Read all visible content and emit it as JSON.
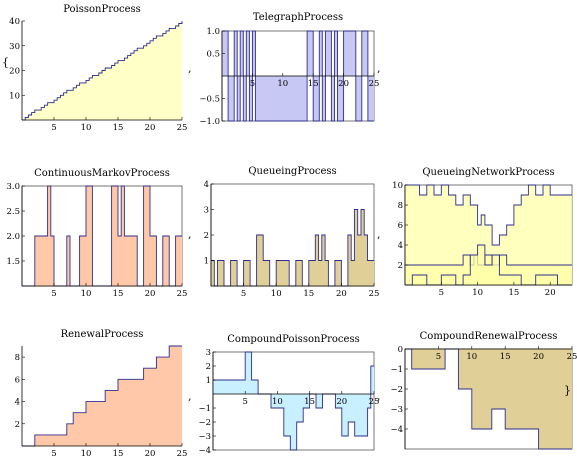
{
  "punctuation": {
    "brace_open": "{",
    "brace_close": "}",
    "comma": ","
  },
  "chart_data": [
    {
      "title": "PoissonProcess",
      "type": "area",
      "style": "step",
      "color": "#FFFFC8",
      "edge": "#2E2E8C",
      "xlim": [
        0,
        25
      ],
      "ylim": [
        0,
        40
      ],
      "axis_at": 0,
      "frame": false,
      "xticks": [
        5,
        10,
        15,
        20,
        25
      ],
      "yticks": [
        10,
        20,
        30,
        40
      ],
      "x": [
        0,
        0.5,
        1,
        1.5,
        2,
        3,
        3.5,
        4,
        5,
        5.5,
        6,
        6.5,
        7,
        8,
        8.5,
        9,
        10,
        10.5,
        11,
        12,
        12.5,
        13,
        14,
        14.5,
        15,
        16,
        16.5,
        17,
        17.5,
        18,
        19,
        19.5,
        20,
        20.5,
        21,
        22,
        22.5,
        23,
        24,
        24.5,
        25
      ],
      "y": [
        0,
        1,
        2,
        3,
        4,
        5,
        6,
        7,
        8,
        9,
        10,
        11,
        12,
        13,
        14,
        15,
        16,
        17,
        18,
        19,
        20,
        21,
        22,
        23,
        24,
        25,
        26,
        27,
        28,
        29,
        30,
        31,
        32,
        33,
        34,
        35,
        36,
        37,
        38,
        39,
        40
      ]
    },
    {
      "title": "TelegraphProcess",
      "type": "area",
      "style": "step",
      "color": "#C8C8F5",
      "edge": "#2E2E8C",
      "xlim": [
        0,
        25
      ],
      "ylim": [
        -1,
        1
      ],
      "axis_at": 0,
      "frame": true,
      "xticks": [
        5,
        10,
        15,
        20,
        25
      ],
      "yticks": [
        -1.0,
        -0.5,
        0.5,
        1.0
      ],
      "ytick_labels": [
        "−1.0",
        "−0.5",
        "0.5",
        "1.0"
      ],
      "x": [
        0,
        1,
        2,
        2.5,
        3,
        3.5,
        4,
        4.5,
        5,
        5.5,
        6,
        14,
        15,
        16,
        16.5,
        17,
        18,
        18.5,
        19,
        20,
        22,
        23,
        24,
        25
      ],
      "y": [
        1,
        -1,
        1,
        -1,
        1,
        -1,
        1,
        -1,
        1,
        -1,
        -1,
        1,
        -1,
        1,
        -1,
        1,
        -1,
        1,
        -1,
        1,
        -1,
        1,
        -1,
        -1
      ]
    },
    {
      "title": "ContinuousMarkovProcess",
      "type": "area",
      "style": "step",
      "color": "#FFC8A8",
      "edge": "#2E2E8C",
      "xlim": [
        0,
        25
      ],
      "ylim": [
        1,
        3
      ],
      "axis_at": 1,
      "frame": true,
      "xticks": [
        5,
        10,
        15,
        20,
        25
      ],
      "yticks": [
        1.5,
        2.0,
        2.5,
        3.0
      ],
      "ytick_labels": [
        "1.5",
        "2.0",
        "2.5",
        "3.0"
      ],
      "x": [
        0,
        2,
        4,
        4.5,
        5,
        7,
        7.5,
        9,
        10,
        11,
        14,
        15,
        15.5,
        16,
        18,
        19,
        20,
        21,
        22,
        23,
        24,
        25
      ],
      "y": [
        1,
        2,
        3,
        2,
        1,
        2,
        1,
        2,
        3,
        1,
        3,
        2,
        3,
        2,
        1,
        3,
        2,
        1,
        2,
        1,
        2,
        2
      ]
    },
    {
      "title": "QueueingProcess",
      "type": "area",
      "style": "step",
      "color": "#E0CF96",
      "edge": "#2E2E8C",
      "xlim": [
        0,
        25
      ],
      "ylim": [
        0,
        4
      ],
      "axis_at": 0,
      "frame": true,
      "xticks": [
        5,
        10,
        15,
        20,
        25
      ],
      "yticks": [
        1,
        2,
        3,
        4
      ],
      "x": [
        0,
        0.5,
        1,
        2,
        3,
        4,
        5,
        6,
        7,
        8,
        9,
        10,
        12,
        13,
        14,
        15,
        16,
        16.5,
        17,
        17.5,
        18,
        19,
        20,
        21,
        21.5,
        22,
        22.5,
        23,
        23.5,
        24,
        25
      ],
      "y": [
        1,
        0,
        1,
        0,
        1,
        0,
        1,
        0,
        2,
        1,
        0,
        1,
        0,
        1,
        0,
        1,
        2,
        1,
        2,
        1,
        0,
        1,
        0,
        2,
        1,
        3,
        2,
        3,
        2,
        1,
        1
      ]
    },
    {
      "title": "QueueingNetworkProcess",
      "type": "area",
      "style": "step",
      "color": "#FFFFA8",
      "edge": "#2E2E8C",
      "xlim": [
        0,
        23
      ],
      "ylim": [
        0,
        10
      ],
      "axis_at": 0,
      "frame": true,
      "xticks": [
        5,
        10,
        15,
        20
      ],
      "yticks": [
        2,
        4,
        6,
        8,
        10
      ],
      "series": [
        {
          "x": [
            0,
            2,
            3,
            4,
            5,
            6,
            7,
            8,
            9,
            10,
            10.5,
            11,
            12,
            13,
            14,
            15,
            16,
            17,
            18,
            19,
            20,
            23
          ],
          "y": [
            10,
            9,
            10,
            9,
            10,
            9,
            8,
            9,
            8,
            6,
            7,
            6,
            4,
            5,
            6,
            8,
            9,
            10,
            9,
            10,
            9,
            9
          ]
        },
        {
          "x": [
            0,
            1,
            2,
            3,
            4,
            5,
            6,
            7,
            8,
            9,
            9.5,
            10,
            11,
            12,
            13,
            14,
            15,
            16,
            17,
            18,
            19,
            20,
            21,
            22,
            23
          ],
          "y": [
            2,
            2,
            2,
            2,
            2,
            2,
            2,
            2,
            3,
            2,
            3,
            2,
            3,
            2,
            3,
            2,
            2,
            2,
            2,
            2,
            2,
            2,
            2,
            2,
            2
          ]
        },
        {
          "x": [
            0,
            1,
            3,
            5,
            7,
            8,
            9,
            10,
            11,
            12,
            13,
            14,
            16,
            18,
            21,
            23
          ],
          "y": [
            0,
            1,
            0,
            1,
            0,
            1,
            3,
            4,
            2,
            3,
            1,
            1,
            0,
            1,
            0,
            0
          ]
        }
      ]
    },
    {
      "title": "RenewalProcess",
      "type": "area",
      "style": "step",
      "color": "#FFC8A8",
      "edge": "#2E2E8C",
      "xlim": [
        0,
        25
      ],
      "ylim": [
        0,
        9
      ],
      "axis_at": 0,
      "frame": false,
      "xticks": [
        5,
        10,
        15,
        20,
        25
      ],
      "yticks": [
        2,
        4,
        6,
        8
      ],
      "x": [
        0,
        2,
        7,
        8,
        10,
        13,
        15,
        16,
        19,
        21,
        23,
        25
      ],
      "y": [
        0,
        1,
        2,
        3,
        4,
        5,
        6,
        6,
        7,
        8,
        9,
        9
      ]
    },
    {
      "title": "CompoundPoissonProcess",
      "type": "area",
      "style": "step",
      "color": "#C8F0FF",
      "edge": "#2E2E8C",
      "xlim": [
        0,
        25
      ],
      "ylim": [
        -4,
        3
      ],
      "axis_at": 0,
      "frame": true,
      "xticks": [
        5,
        10,
        15,
        20,
        25
      ],
      "yticks": [
        -4,
        -3,
        -2,
        -1,
        1,
        2,
        3
      ],
      "ytick_labels": [
        "−4",
        "−3",
        "−2",
        "−1",
        "1",
        "2",
        "3"
      ],
      "x": [
        0,
        5,
        6,
        7,
        9,
        11,
        12,
        13,
        14,
        15,
        16,
        17,
        19,
        20,
        21,
        22,
        24,
        24.5,
        25
      ],
      "y": [
        1,
        3,
        1,
        0,
        -1,
        -3,
        -4,
        -2,
        -1,
        0,
        -1,
        0,
        -1,
        -3,
        -2,
        -3,
        -1,
        2,
        2
      ]
    },
    {
      "title": "CompoundRenewalProcess",
      "type": "area",
      "style": "step",
      "color": "#E0CF96",
      "edge": "#2E2E8C",
      "xlim": [
        0,
        25
      ],
      "ylim": [
        -5,
        0
      ],
      "axis_at": 0,
      "frame": true,
      "xticks": [
        5,
        10,
        15,
        20,
        25
      ],
      "yticks": [
        -4,
        -3,
        -2,
        -1,
        0
      ],
      "ytick_labels": [
        "−4",
        "−3",
        "−2",
        "−1",
        "0"
      ],
      "x": [
        0,
        1,
        6,
        8,
        10,
        13,
        15,
        20,
        25
      ],
      "y": [
        0,
        -1,
        0,
        -2,
        -4,
        -3,
        -4,
        -5,
        -5
      ]
    }
  ]
}
